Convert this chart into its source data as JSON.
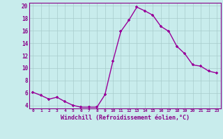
{
  "x": [
    0,
    1,
    2,
    3,
    4,
    5,
    6,
    7,
    8,
    9,
    10,
    11,
    12,
    13,
    14,
    15,
    16,
    17,
    18,
    19,
    20,
    21,
    22,
    23
  ],
  "y": [
    6.1,
    5.6,
    5.0,
    5.3,
    4.6,
    4.0,
    3.7,
    3.7,
    3.7,
    5.7,
    11.1,
    15.9,
    17.7,
    19.8,
    19.2,
    18.5,
    16.7,
    15.9,
    13.5,
    12.3,
    10.5,
    10.3,
    9.5,
    9.2
  ],
  "line_color": "#990099",
  "marker": "+",
  "bg_color": "#c8ecec",
  "grid_color": "#a8cccc",
  "xlabel": "Windchill (Refroidissement éolien,°C)",
  "label_color": "#880088",
  "tick_color": "#880088",
  "ylim": [
    3.5,
    20.5
  ],
  "yticks": [
    4,
    6,
    8,
    10,
    12,
    14,
    16,
    18,
    20
  ],
  "xticks": [
    0,
    1,
    2,
    3,
    4,
    5,
    6,
    7,
    8,
    9,
    10,
    11,
    12,
    13,
    14,
    15,
    16,
    17,
    18,
    19,
    20,
    21,
    22,
    23
  ],
  "spine_color": "#880088"
}
